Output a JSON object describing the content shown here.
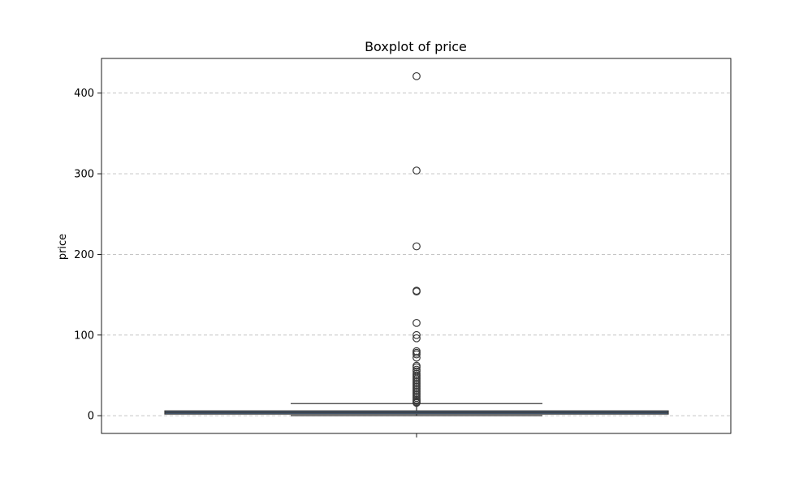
{
  "chart_data": {
    "type": "boxplot",
    "title": "Boxplot of price",
    "xlabel": "",
    "ylabel": "price",
    "ylim": [
      -22,
      443
    ],
    "yticks": [
      0,
      100,
      200,
      300,
      400
    ],
    "grid": "y",
    "box_color": "#4a6a8f",
    "box": {
      "min": 0.1,
      "q1": 2,
      "median": 4,
      "q3": 6,
      "max": 15
    },
    "outliers": [
      421,
      304,
      210,
      155,
      154,
      115,
      100,
      96,
      80,
      78,
      76,
      72,
      62,
      60,
      57,
      55,
      52,
      50,
      48,
      46,
      44,
      42,
      40,
      38,
      36,
      34,
      32,
      30,
      28,
      26,
      24,
      22,
      20,
      18.5,
      17,
      16
    ]
  }
}
